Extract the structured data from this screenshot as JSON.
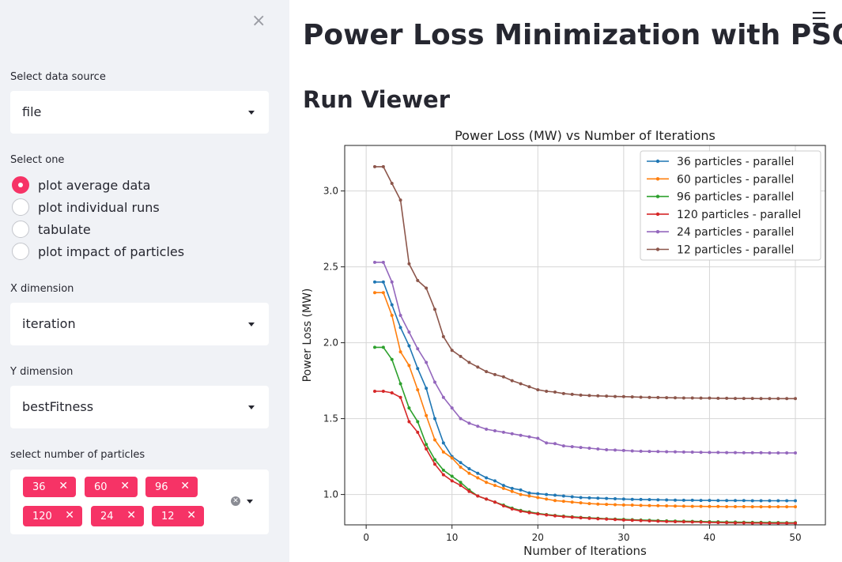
{
  "sidebar": {
    "close_icon": "×",
    "data_source": {
      "label": "Select data source",
      "value": "file"
    },
    "select_one": {
      "label": "Select one",
      "options": [
        "plot average data",
        "plot individual runs",
        "tabulate",
        "plot impact of particles"
      ],
      "selected_index": 0
    },
    "x_dimension": {
      "label": "X dimension",
      "value": "iteration"
    },
    "y_dimension": {
      "label": "Y dimension",
      "value": "bestFitness"
    },
    "particles": {
      "label": "select number of particles",
      "tags": [
        "36",
        "60",
        "96",
        "120",
        "24",
        "12"
      ],
      "tag_close_icon": "✕",
      "clear_icon": "✕"
    }
  },
  "main": {
    "menu_icon": "☰",
    "title": "Power Loss Minimization with PSO",
    "subheader": "Run Viewer"
  },
  "colors": {
    "accent": "#f63366",
    "sidebar_bg": "#f0f2f6"
  },
  "chart_data": {
    "type": "line",
    "title": "Power Loss (MW) vs Number of Iterations",
    "xlabel": "Number of Iterations",
    "ylabel": "Power Loss (MW)",
    "xlim": [
      -2.5,
      53.5
    ],
    "ylim": [
      0.8,
      3.3
    ],
    "xticks": [
      0,
      10,
      20,
      30,
      40,
      50
    ],
    "yticks": [
      1.0,
      1.5,
      2.0,
      2.5,
      3.0
    ],
    "ytick_labels": [
      "1.0",
      "1.5",
      "2.0",
      "2.5",
      "3.0"
    ],
    "grid": true,
    "legend_position": "top-right",
    "x": [
      1,
      2,
      3,
      4,
      5,
      6,
      7,
      8,
      9,
      10,
      11,
      12,
      13,
      14,
      15,
      16,
      17,
      18,
      19,
      20,
      21,
      22,
      23,
      24,
      25,
      26,
      27,
      28,
      29,
      30,
      31,
      32,
      33,
      34,
      35,
      36,
      37,
      38,
      39,
      40,
      41,
      42,
      43,
      44,
      45,
      46,
      47,
      48,
      49,
      50
    ],
    "series": [
      {
        "name": "36 particles - parallel",
        "color": "#1f77b4",
        "values": [
          2.4,
          2.4,
          2.25,
          2.1,
          1.98,
          1.83,
          1.7,
          1.5,
          1.34,
          1.25,
          1.21,
          1.17,
          1.14,
          1.11,
          1.09,
          1.06,
          1.04,
          1.03,
          1.01,
          1.005,
          1.0,
          0.995,
          0.99,
          0.985,
          0.98,
          0.978,
          0.976,
          0.974,
          0.972,
          0.97,
          0.968,
          0.967,
          0.966,
          0.965,
          0.964,
          0.963,
          0.962,
          0.962,
          0.961,
          0.961,
          0.96,
          0.96,
          0.96,
          0.96,
          0.959,
          0.959,
          0.959,
          0.959,
          0.959,
          0.959
        ]
      },
      {
        "name": "60 particles - parallel",
        "color": "#ff7f0e",
        "values": [
          2.33,
          2.33,
          2.18,
          1.94,
          1.85,
          1.69,
          1.52,
          1.36,
          1.28,
          1.24,
          1.18,
          1.14,
          1.11,
          1.08,
          1.06,
          1.04,
          1.02,
          1.0,
          0.99,
          0.98,
          0.97,
          0.96,
          0.955,
          0.95,
          0.945,
          0.94,
          0.937,
          0.935,
          0.933,
          0.931,
          0.93,
          0.928,
          0.927,
          0.926,
          0.925,
          0.924,
          0.923,
          0.922,
          0.922,
          0.921,
          0.921,
          0.92,
          0.92,
          0.92,
          0.919,
          0.919,
          0.919,
          0.919,
          0.919,
          0.919
        ]
      },
      {
        "name": "96 particles - parallel",
        "color": "#2ca02c",
        "values": [
          1.97,
          1.97,
          1.89,
          1.73,
          1.57,
          1.48,
          1.33,
          1.23,
          1.16,
          1.12,
          1.08,
          1.03,
          0.99,
          0.97,
          0.95,
          0.93,
          0.91,
          0.895,
          0.885,
          0.875,
          0.868,
          0.862,
          0.857,
          0.853,
          0.849,
          0.846,
          0.843,
          0.84,
          0.838,
          0.836,
          0.834,
          0.832,
          0.83,
          0.828,
          0.826,
          0.825,
          0.824,
          0.823,
          0.822,
          0.821,
          0.82,
          0.819,
          0.818,
          0.817,
          0.816,
          0.816,
          0.815,
          0.815,
          0.814,
          0.814
        ]
      },
      {
        "name": "120 particles - parallel",
        "color": "#d62728",
        "values": [
          1.68,
          1.68,
          1.67,
          1.64,
          1.48,
          1.41,
          1.3,
          1.2,
          1.13,
          1.09,
          1.06,
          1.02,
          0.99,
          0.97,
          0.95,
          0.925,
          0.905,
          0.89,
          0.88,
          0.872,
          0.865,
          0.859,
          0.854,
          0.85,
          0.846,
          0.843,
          0.84,
          0.838,
          0.835,
          0.832,
          0.83,
          0.828,
          0.826,
          0.824,
          0.822,
          0.821,
          0.82,
          0.819,
          0.818,
          0.816,
          0.815,
          0.814,
          0.813,
          0.813,
          0.812,
          0.812,
          0.811,
          0.811,
          0.811,
          0.811
        ]
      },
      {
        "name": "24 particles - parallel",
        "color": "#9467bd",
        "values": [
          2.53,
          2.53,
          2.4,
          2.18,
          2.07,
          1.96,
          1.87,
          1.74,
          1.64,
          1.57,
          1.5,
          1.47,
          1.45,
          1.43,
          1.42,
          1.41,
          1.4,
          1.39,
          1.38,
          1.37,
          1.34,
          1.335,
          1.32,
          1.315,
          1.31,
          1.305,
          1.3,
          1.295,
          1.293,
          1.29,
          1.287,
          1.285,
          1.284,
          1.283,
          1.282,
          1.281,
          1.28,
          1.279,
          1.278,
          1.277,
          1.277,
          1.276,
          1.276,
          1.275,
          1.275,
          1.275,
          1.274,
          1.274,
          1.274,
          1.274
        ]
      },
      {
        "name": "12 particles - parallel",
        "color": "#8c564b",
        "values": [
          3.16,
          3.16,
          3.05,
          2.94,
          2.52,
          2.41,
          2.36,
          2.22,
          2.04,
          1.95,
          1.91,
          1.87,
          1.84,
          1.81,
          1.79,
          1.775,
          1.75,
          1.73,
          1.71,
          1.69,
          1.68,
          1.675,
          1.665,
          1.66,
          1.655,
          1.652,
          1.65,
          1.648,
          1.646,
          1.645,
          1.643,
          1.641,
          1.64,
          1.639,
          1.638,
          1.637,
          1.636,
          1.636,
          1.635,
          1.635,
          1.634,
          1.634,
          1.633,
          1.633,
          1.633,
          1.632,
          1.632,
          1.632,
          1.632,
          1.632
        ]
      }
    ]
  }
}
